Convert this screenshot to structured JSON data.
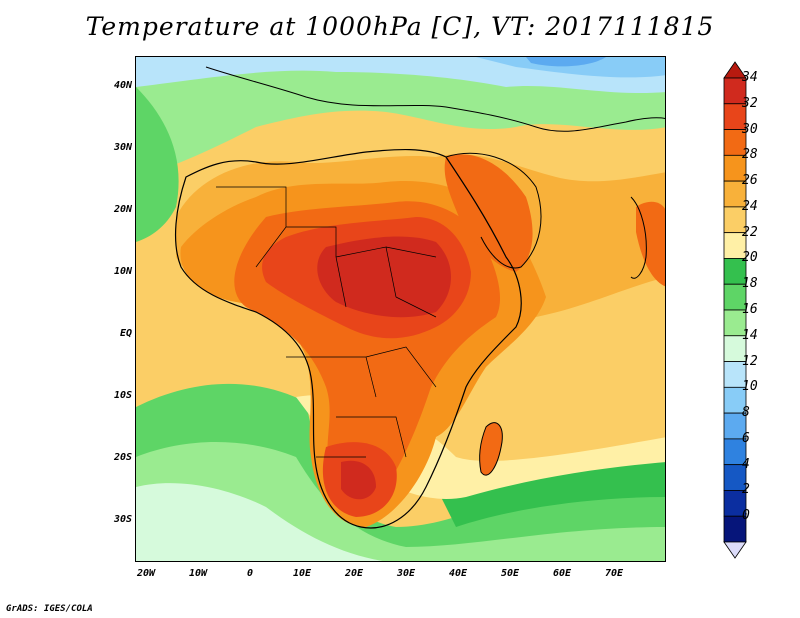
{
  "title": "Temperature at 1000hPa [C], VT: 2017111815",
  "footer": "GrADS: IGES/COLA",
  "map": {
    "region": "Africa and surrounding oceans",
    "lat_range": [
      -37,
      45
    ],
    "lon_range": [
      -23,
      79
    ],
    "lat_ticks": [
      "40N",
      "30N",
      "20N",
      "10N",
      "EQ",
      "10S",
      "20S",
      "30S"
    ],
    "lon_ticks": [
      "20W",
      "10W",
      "0",
      "10E",
      "20E",
      "30E",
      "40E",
      "50E",
      "60E",
      "70E"
    ]
  },
  "colorbar": {
    "labels": [
      "34",
      "32",
      "30",
      "28",
      "26",
      "24",
      "22",
      "20",
      "18",
      "16",
      "14",
      "12",
      "10",
      "8",
      "6",
      "4",
      "2",
      "0"
    ],
    "colors_top_to_bottom": [
      "#d02a1e",
      "#e8451a",
      "#f26a14",
      "#f6941c",
      "#f8b13a",
      "#fbce66",
      "#fff0a6",
      "#34c04e",
      "#5ed566",
      "#9aeb90",
      "#d6fadc",
      "#b8e4fa",
      "#88ccf7",
      "#5caaf0",
      "#2f82e0",
      "#1558c4",
      "#0b2ea0",
      "#06157a"
    ],
    "overflow_top_color": "#b81a0f",
    "overflow_bottom_color": "#dcdcfa"
  }
}
